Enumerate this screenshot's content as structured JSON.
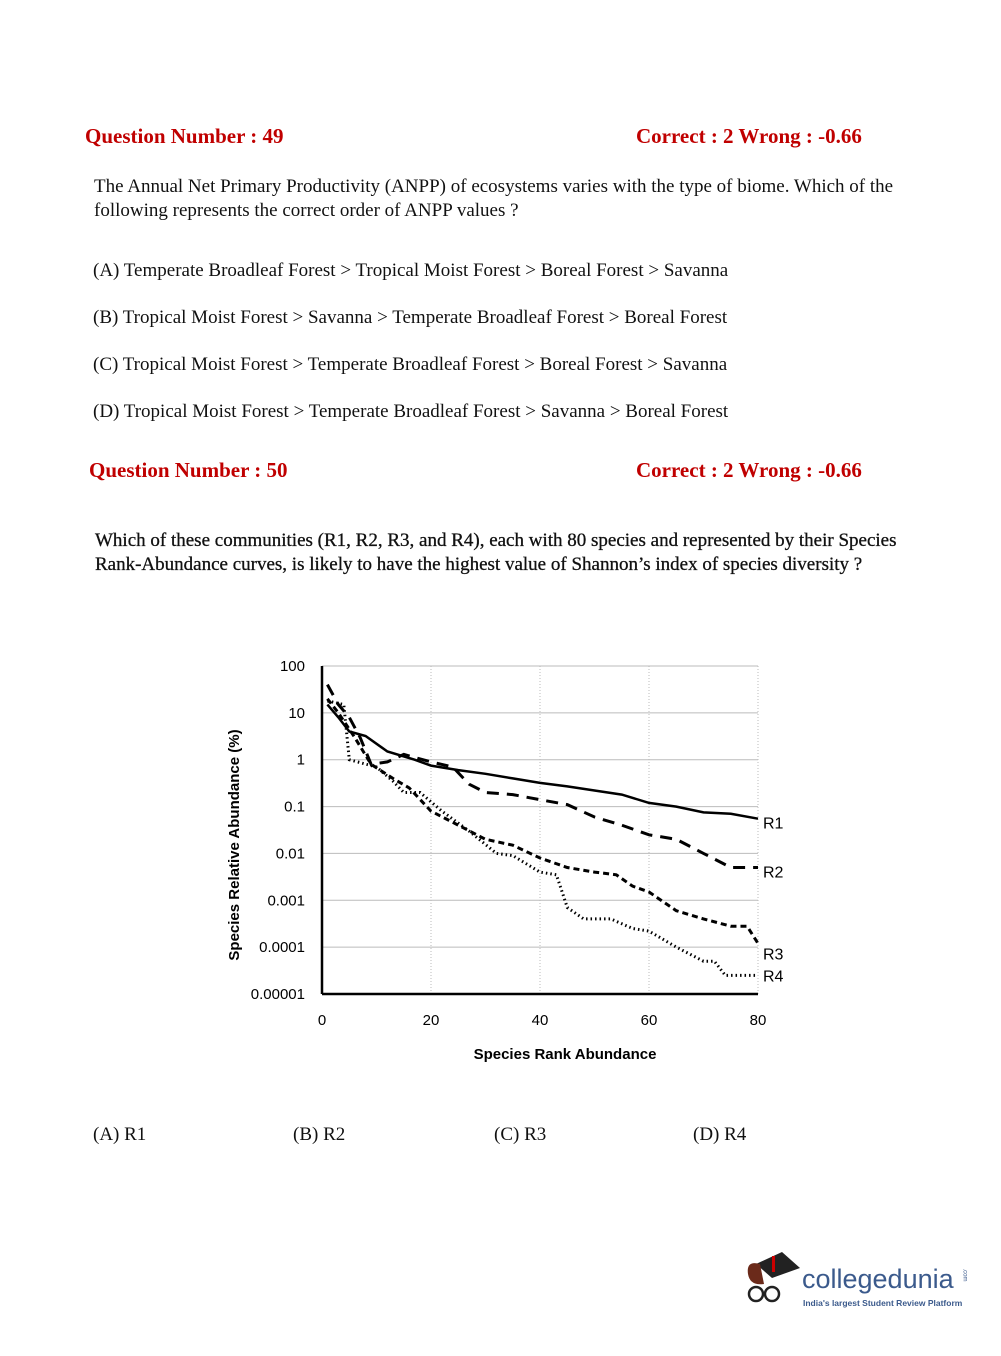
{
  "q49": {
    "heading": "Question Number : 49",
    "marks": "Correct : 2  Wrong : -0.66",
    "text": "The Annual Net Primary Productivity (ANPP) of ecosystems varies with the type of biome. Which of the following represents the correct order of ANPP values ?",
    "options": [
      "(A) Temperate Broadleaf Forest > Tropical Moist Forest > Boreal Forest >  Savanna",
      "(B) Tropical Moist Forest > Savanna > Temperate Broadleaf Forest > Boreal Forest",
      "(C) Tropical Moist Forest > Temperate Broadleaf Forest > Boreal Forest > Savanna",
      "(D) Tropical Moist Forest > Temperate Broadleaf Forest > Savanna > Boreal Forest"
    ]
  },
  "q50": {
    "heading": "Question Number : 50",
    "marks": "Correct : 2  Wrong : -0.66",
    "text": "Which of these communities (R1, R2, R3, and R4), each with 80 species and represented by their Species Rank-Abundance curves, is likely to have the highest value of Shannon’s index of species diversity ?",
    "options": [
      "(A) R1",
      "(B) R2",
      "(C) R3",
      "(D) R4"
    ]
  },
  "chart_data": {
    "type": "line",
    "title": "",
    "xlabel": "Species Rank Abundance",
    "ylabel": "Species Relative Abundance (%)",
    "xlim": [
      0,
      80
    ],
    "ylim": [
      1e-05,
      100
    ],
    "yscale": "log",
    "xticks": [
      "0",
      "20",
      "40",
      "60",
      "80"
    ],
    "yticks": [
      "100",
      "10",
      "1",
      "0.1",
      "0.01",
      "0.001",
      "0.0001",
      "0.00001"
    ],
    "grid": true,
    "legend": "series labels at right end of curves",
    "series": [
      {
        "name": "R1",
        "style": "solid",
        "x": [
          1,
          3,
          5,
          8,
          12,
          17,
          20,
          25,
          30,
          35,
          40,
          45,
          50,
          55,
          60,
          65,
          70,
          75,
          80
        ],
        "y": [
          15,
          8,
          4,
          3.2,
          1.5,
          1,
          0.75,
          0.6,
          0.5,
          0.4,
          0.32,
          0.27,
          0.22,
          0.18,
          0.12,
          0.1,
          0.075,
          0.07,
          0.055
        ]
      },
      {
        "name": "R2",
        "style": "long-dash",
        "x": [
          1,
          3,
          5,
          7,
          9,
          12,
          15,
          20,
          24,
          27,
          30,
          35,
          40,
          45,
          50,
          55,
          60,
          65,
          70,
          75,
          80
        ],
        "y": [
          40,
          15,
          8,
          3,
          0.8,
          0.9,
          1.3,
          0.9,
          0.7,
          0.3,
          0.2,
          0.18,
          0.14,
          0.11,
          0.06,
          0.04,
          0.025,
          0.02,
          0.01,
          0.005,
          0.005
        ]
      },
      {
        "name": "R3",
        "style": "short-dash",
        "x": [
          1,
          3,
          6,
          9,
          13,
          16,
          20,
          25,
          30,
          35,
          40,
          45,
          50,
          54,
          57,
          60,
          65,
          70,
          75,
          78,
          80
        ],
        "y": [
          20,
          10,
          3,
          0.8,
          0.4,
          0.25,
          0.08,
          0.04,
          0.02,
          0.015,
          0.008,
          0.005,
          0.004,
          0.0035,
          0.002,
          0.0015,
          0.0006,
          0.0004,
          0.00028,
          0.00028,
          0.00012
        ]
      },
      {
        "name": "R4",
        "style": "dotted",
        "x": [
          1,
          4,
          5,
          10,
          13,
          15,
          18,
          22,
          27,
          32,
          35,
          40,
          43,
          45,
          48,
          53,
          57,
          60,
          65,
          70,
          72,
          74,
          80
        ],
        "y": [
          18,
          15,
          1,
          0.7,
          0.35,
          0.2,
          0.2,
          0.08,
          0.03,
          0.01,
          0.009,
          0.004,
          0.0035,
          0.0007,
          0.0004,
          0.0004,
          0.00025,
          0.00022,
          0.0001,
          5e-05,
          5e-05,
          2.5e-05,
          2.5e-05
        ]
      }
    ]
  },
  "logo": {
    "name": "collegedunia",
    "suffix": ".com",
    "tagline": "India's largest Student Review Platform",
    "color": "#3b5a8c"
  },
  "colors": {
    "heading": "#c00000"
  }
}
